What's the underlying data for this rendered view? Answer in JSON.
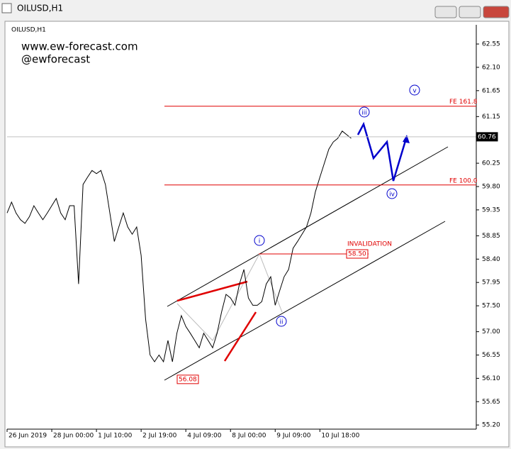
{
  "window_title": "OILUSD,H1",
  "chart_data": {
    "type": "line",
    "title": "OILUSD,H1",
    "watermark": [
      "www.ew-forecast.com",
      "@ewforecast"
    ],
    "x": [
      0,
      1,
      2,
      3,
      4,
      5,
      6,
      7,
      8,
      9,
      10,
      11,
      12,
      13,
      14,
      15,
      16,
      17,
      18,
      19,
      20,
      21,
      22,
      23,
      24,
      25,
      26,
      27,
      28,
      29,
      30,
      31,
      32,
      33,
      34,
      35,
      36,
      37,
      38,
      39,
      40,
      41,
      42,
      43,
      44,
      45,
      46,
      47,
      48,
      49,
      50,
      51,
      52,
      53,
      54,
      55,
      56,
      57,
      58,
      59,
      60,
      61,
      62,
      63,
      64,
      65,
      66,
      67,
      68,
      69,
      70,
      71,
      72,
      73,
      74,
      75,
      76,
      77
    ],
    "series": [
      {
        "name": "OILUSD",
        "color": "#000000",
        "values": [
          59.29,
          59.5,
          59.29,
          59.16,
          59.09,
          59.22,
          59.43,
          59.29,
          59.16,
          59.29,
          59.43,
          59.57,
          59.29,
          59.16,
          59.43,
          59.43,
          57.92,
          59.84,
          59.98,
          60.11,
          60.05,
          60.11,
          59.84,
          59.29,
          58.74,
          59.02,
          59.29,
          59.02,
          58.88,
          59.02,
          58.47,
          57.24,
          56.55,
          56.42,
          56.55,
          56.42,
          56.83,
          56.42,
          56.97,
          57.31,
          57.1,
          56.97,
          56.83,
          56.69,
          56.97,
          56.83,
          56.69,
          56.97,
          57.38,
          57.72,
          57.65,
          57.51,
          57.92,
          58.2,
          57.65,
          57.51,
          57.51,
          57.58,
          57.92,
          58.06,
          57.51,
          57.79,
          58.06,
          58.2,
          58.61,
          58.74,
          58.88,
          59.02,
          59.29,
          59.7,
          59.98,
          60.25,
          60.52,
          60.66,
          60.73,
          60.87,
          60.8,
          60.73
        ]
      }
    ],
    "xlim": [
      0,
      105
    ],
    "xticks": [
      {
        "value": 0,
        "label": "26 Jun 2019"
      },
      {
        "value": 10,
        "label": "28 Jun 00:00"
      },
      {
        "value": 20,
        "label": "1 Jul 10:00"
      },
      {
        "value": 30,
        "label": "2 Jul 19:00"
      },
      {
        "value": 40,
        "label": "4 Jul 09:00"
      },
      {
        "value": 50,
        "label": "8 Jul 00:00"
      },
      {
        "value": 60,
        "label": "9 Jul 09:00"
      },
      {
        "value": 70,
        "label": "10 Jul 18:00"
      }
    ],
    "ylim": [
      55.12,
      62.92
    ],
    "yticks": [
      62.55,
      {
        "value": 62.1,
        "label": "62.10"
      },
      61.65,
      61.15,
      60.25,
      {
        "value": 59.8,
        "label": "59.80"
      },
      59.35,
      58.85,
      {
        "value": 58.4,
        "label": "58.40"
      },
      57.95,
      {
        "value": 57.5,
        "label": "57.50"
      },
      {
        "value": 57,
        "label": "57.00"
      },
      56.55,
      {
        "value": 56.1,
        "label": "56.10"
      },
      55.65,
      {
        "value": 55.2,
        "label": "55.20"
      }
    ],
    "levels": [
      {
        "label": "FE 161.8",
        "value": 61.35
      },
      {
        "label": "FE 100.0",
        "value": 59.83
      },
      {
        "label": "INVALIDATION",
        "value": 58.5
      }
    ],
    "price_labels": [
      60.76,
      56.08,
      58.5
    ],
    "price_label_texts": [
      "60.76",
      "56.08",
      "58.50"
    ],
    "wave_labels": [
      "i",
      "ii",
      "iii",
      "iv",
      "v"
    ]
  }
}
